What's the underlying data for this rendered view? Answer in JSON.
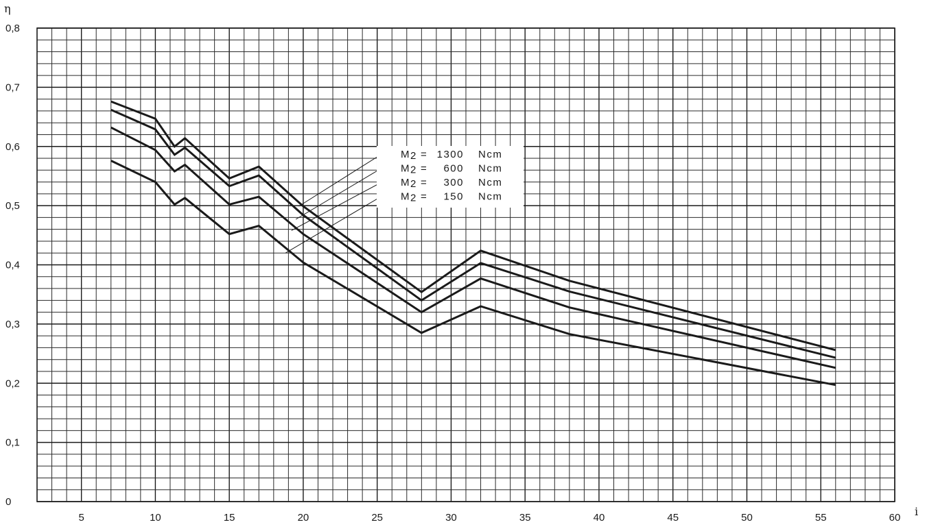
{
  "chart_data": {
    "type": "line",
    "title": "",
    "xlabel": "i",
    "ylabel": "η",
    "xlim": [
      2,
      60
    ],
    "ylim": [
      0,
      0.8
    ],
    "x_ticks": [
      {
        "value": 5,
        "label": "5"
      },
      {
        "value": 10,
        "label": "10"
      },
      {
        "value": 15,
        "label": "15"
      },
      {
        "value": 20,
        "label": "20"
      },
      {
        "value": 25,
        "label": "25"
      },
      {
        "value": 30,
        "label": "30"
      },
      {
        "value": 35,
        "label": "35"
      },
      {
        "value": 40,
        "label": "40"
      },
      {
        "value": 45,
        "label": "45"
      },
      {
        "value": 50,
        "label": "50"
      },
      {
        "value": 55,
        "label": "55"
      },
      {
        "value": 60,
        "label": "60"
      }
    ],
    "y_ticks": [
      {
        "value": 0,
        "label": "0"
      },
      {
        "value": 0.1,
        "label": "0,1"
      },
      {
        "value": 0.2,
        "label": "0,2"
      },
      {
        "value": 0.3,
        "label": "0,3"
      },
      {
        "value": 0.4,
        "label": "0,4"
      },
      {
        "value": 0.5,
        "label": "0,5"
      },
      {
        "value": 0.6,
        "label": "0,6"
      },
      {
        "value": 0.7,
        "label": "0,7"
      },
      {
        "value": 0.8,
        "label": "0,8"
      }
    ],
    "x": [
      7,
      10,
      11.3,
      12,
      15,
      17,
      20,
      28,
      32,
      38,
      56
    ],
    "grid": true,
    "series": [
      {
        "name": "M₂ = 1300 Ncm",
        "values": [
          0.676,
          0.647,
          0.6,
          0.614,
          0.546,
          0.566,
          0.499,
          0.354,
          0.424,
          0.373,
          0.256
        ]
      },
      {
        "name": "M₂ = 600 Ncm",
        "values": [
          0.662,
          0.629,
          0.586,
          0.598,
          0.533,
          0.551,
          0.484,
          0.34,
          0.403,
          0.355,
          0.243
        ]
      },
      {
        "name": "M₂ = 300 Ncm",
        "values": [
          0.632,
          0.594,
          0.558,
          0.569,
          0.502,
          0.515,
          0.452,
          0.32,
          0.377,
          0.328,
          0.226
        ]
      },
      {
        "name": "M₂ = 150 Ncm",
        "values": [
          0.576,
          0.54,
          0.502,
          0.513,
          0.452,
          0.466,
          0.404,
          0.285,
          0.33,
          0.283,
          0.197
        ]
      }
    ],
    "legend": {
      "placement": "center",
      "entries": [
        {
          "symbol": "M",
          "sub": "2",
          "eq": "=",
          "value": "1300",
          "unit": "Ncm"
        },
        {
          "symbol": "M",
          "sub": "2",
          "eq": "=",
          "value": "600",
          "unit": "Ncm"
        },
        {
          "symbol": "M",
          "sub": "2",
          "eq": "=",
          "value": "300",
          "unit": "Ncm"
        },
        {
          "symbol": "M",
          "sub": "2",
          "eq": "=",
          "value": "150",
          "unit": "Ncm"
        }
      ],
      "leader_targets": [
        {
          "x": 19.7,
          "y": 0.499
        },
        {
          "x": 19.5,
          "y": 0.477
        },
        {
          "x": 19.2,
          "y": 0.458
        },
        {
          "x": 18.8,
          "y": 0.42
        }
      ]
    }
  }
}
